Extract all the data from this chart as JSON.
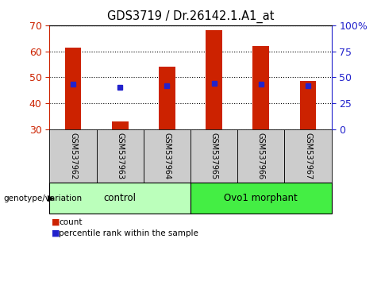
{
  "title": "GDS3719 / Dr.26142.1.A1_at",
  "samples": [
    "GSM537962",
    "GSM537963",
    "GSM537964",
    "GSM537965",
    "GSM537966",
    "GSM537967"
  ],
  "counts": [
    61.5,
    33.0,
    54.0,
    68.0,
    62.0,
    48.5
  ],
  "percentile_ranks": [
    43.0,
    40.0,
    42.0,
    44.0,
    43.5,
    42.0
  ],
  "ylim_left": [
    30,
    70
  ],
  "ylim_right": [
    0,
    100
  ],
  "yticks_left": [
    30,
    40,
    50,
    60,
    70
  ],
  "yticks_right": [
    0,
    25,
    50,
    75,
    100
  ],
  "ytick_labels_right": [
    "0",
    "25",
    "50",
    "75",
    "100%"
  ],
  "bar_color": "#cc2200",
  "dot_color": "#2222cc",
  "bar_width": 0.35,
  "groups": [
    {
      "label": "control",
      "indices": [
        0,
        1,
        2
      ],
      "color": "#bbffbb"
    },
    {
      "label": "Ovo1 morphant",
      "indices": [
        3,
        4,
        5
      ],
      "color": "#44ee44"
    }
  ],
  "group_label": "genotype/variation",
  "legend_items": [
    {
      "label": "count",
      "color": "#cc2200"
    },
    {
      "label": "percentile rank within the sample",
      "color": "#2222cc"
    }
  ],
  "background_color": "#ffffff",
  "plot_bg_color": "#ffffff",
  "tick_color_left": "#cc2200",
  "tick_color_right": "#2222cc",
  "sample_box_color": "#cccccc",
  "figsize": [
    4.8,
    3.54
  ],
  "dpi": 100
}
